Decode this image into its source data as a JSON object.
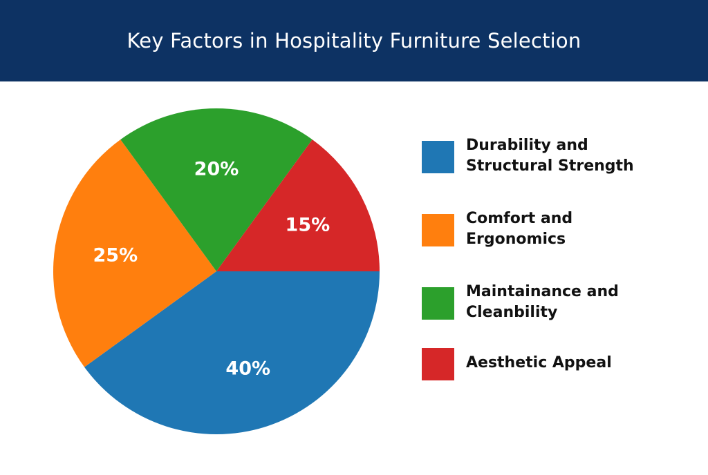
{
  "header": {
    "title": "Key Factors in Hospitality Furniture Selection"
  },
  "chart_data": {
    "type": "pie",
    "title": "Key Factors in Hospitality Furniture Selection",
    "unit": "%",
    "slices": [
      {
        "name": "Durability and Structural Strength",
        "lines": [
          "Durability and",
          "Structural Strength"
        ],
        "value": 40,
        "label": "40%",
        "color": "#1f77b4"
      },
      {
        "name": "Comfort and Ergonomics",
        "lines": [
          "Comfort and",
          "Ergonomics"
        ],
        "value": 25,
        "label": "25%",
        "color": "#ff7f0e"
      },
      {
        "name": "Maintainance and Cleanbility",
        "lines": [
          "Maintainance and",
          "Cleanbility"
        ],
        "value": 20,
        "label": "20%",
        "color": "#2ca02c"
      },
      {
        "name": "Aesthetic Appeal",
        "lines": [
          "Aesthetic Appeal"
        ],
        "value": 15,
        "label": "15%",
        "color": "#d62728"
      }
    ],
    "legend_position": "right"
  }
}
